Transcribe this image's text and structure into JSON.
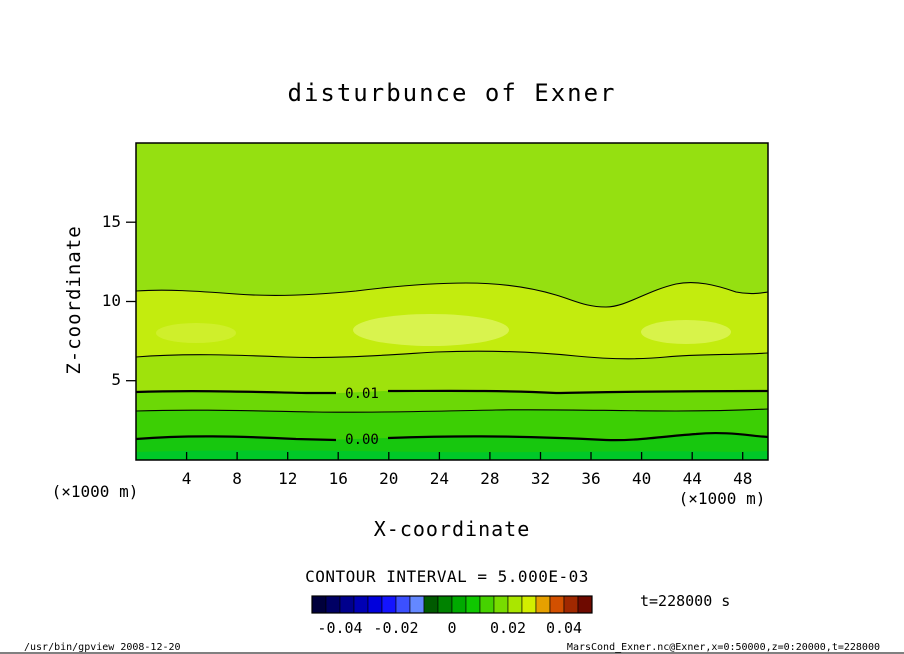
{
  "title": "disturbunce of Exner",
  "axes": {
    "x_label": "X-coordinate",
    "y_label": "Z-coordinate",
    "x_unit_left": "(×1000 m)",
    "x_unit_right": "(×1000 m)",
    "x_ticks": [
      "4",
      "8",
      "12",
      "16",
      "20",
      "24",
      "28",
      "32",
      "36",
      "40",
      "44",
      "48"
    ],
    "y_ticks": [
      "15",
      "10",
      "5"
    ]
  },
  "contour": {
    "label_upper": "0.01",
    "label_lower": "0.00",
    "interval_text": "CONTOUR INTERVAL = 5.000E-03"
  },
  "annotations": {
    "time_text": "t=228000 s"
  },
  "colorbar": {
    "tick_labels": [
      "-0.04",
      "-0.02",
      "0",
      "0.02",
      "0.04"
    ],
    "colors": [
      "#00003c",
      "#000064",
      "#00008c",
      "#0000b4",
      "#0000dc",
      "#1414ff",
      "#3c50ff",
      "#6488ff",
      "#005a00",
      "#008200",
      "#00aa00",
      "#0fc800",
      "#46d200",
      "#78dc00",
      "#aae600",
      "#d2ee00",
      "#e6a000",
      "#d25000",
      "#a02800",
      "#6e0a00"
    ]
  },
  "footer": {
    "left": "/usr/bin/gpview  2008-12-20",
    "right": "MarsCond_Exner.nc@Exner,x=0:50000,z=0:20000,t=228000"
  },
  "colors": {
    "time_text": "#0b6e55",
    "footer_right": "#7a2000",
    "band_top": "#95e011",
    "band_mid": "#c3ec0e",
    "band_bright_patch": "#dcf455",
    "band_4_6": "#9fe20c",
    "band_3_4": "#6cd806",
    "band_1_3": "#3ccf04",
    "band_bottom": "#17c70e",
    "band_lowest": "#00c828"
  },
  "chart_data": {
    "type": "heatmap",
    "title": "disturbunce of Exner",
    "xlabel": "X-coordinate (×1000 m)",
    "ylabel": "Z-coordinate (×1000 m)",
    "xlim": [
      0,
      50
    ],
    "ylim": [
      0,
      20
    ],
    "x_tick_values": [
      4,
      8,
      12,
      16,
      20,
      24,
      28,
      32,
      36,
      40,
      44,
      48
    ],
    "y_tick_values": [
      5,
      10,
      15
    ],
    "time": "t=228000 s",
    "contour_interval": 0.005,
    "colorbar_range": [
      -0.05,
      0.05
    ],
    "colorbar_tick_values": [
      -0.04,
      -0.02,
      0,
      0.02,
      0.04
    ],
    "contour_lines": [
      {
        "label": "",
        "approx_level": 0.02,
        "mean_z_km": 11.0,
        "thickness": "thin"
      },
      {
        "label": "",
        "approx_level": 0.015,
        "mean_z_km": 6.5,
        "thickness": "thin"
      },
      {
        "label": "0.01",
        "approx_level": 0.01,
        "mean_z_km": 4.3,
        "thickness": "thick"
      },
      {
        "label": "",
        "approx_level": 0.005,
        "mean_z_km": 3.0,
        "thickness": "thin"
      },
      {
        "label": "0.00",
        "approx_level": 0.0,
        "mean_z_km": 1.5,
        "thickness": "thick"
      }
    ],
    "field_summary": "Exner function disturbance: near 0.00 at the surface, increasing with height to a broad maximum (~0.025) around z = 7-9 (x1000 m) with brighter patches near x = 20-28 and x = 44, then decreasing slightly above z = 11; contours are quasi-horizontal wavy lines."
  }
}
